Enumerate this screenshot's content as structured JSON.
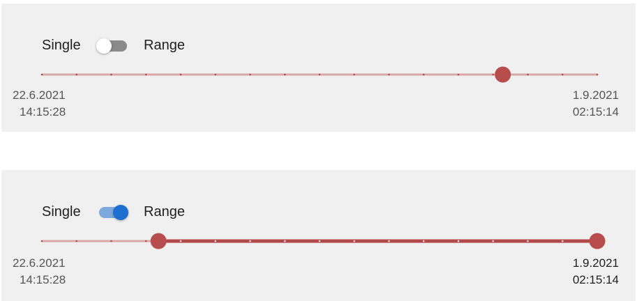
{
  "panels": [
    {
      "mode": "single",
      "labels": {
        "single": "Single",
        "range": "Range"
      },
      "toggle_on": false,
      "slider": {
        "ticks": 17,
        "value_fraction": 0.83
      },
      "start": {
        "date": "22.6.2021",
        "time": "14:15:28"
      },
      "end": {
        "date": "1.9.2021",
        "time": "02:15:14"
      }
    },
    {
      "mode": "range",
      "labels": {
        "single": "Single",
        "range": "Range"
      },
      "toggle_on": true,
      "slider": {
        "ticks": 17,
        "range_start_fraction": 0.21,
        "range_end_fraction": 1.0
      },
      "start": {
        "date": "22.6.2021",
        "time": "14:15:28"
      },
      "end": {
        "date": "1.9.2021",
        "time": "02:15:14"
      }
    }
  ],
  "colors": {
    "track_light": "#d9a9a8",
    "track_active": "#b3484a",
    "thumb": "#b84d4d",
    "tick_on_light": "#b3484a",
    "tick_on_active": "#f3dede",
    "toggle_on": "#1e6fcf"
  }
}
